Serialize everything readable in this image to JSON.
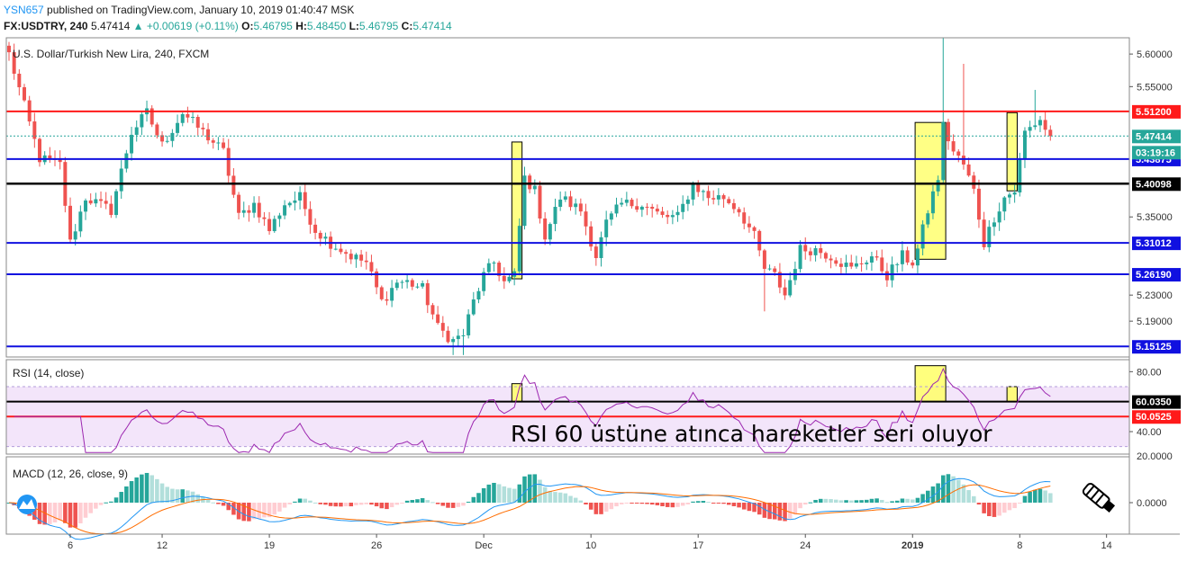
{
  "header": {
    "user": "YSN657",
    "published": "published on TradingView.com, January 10, 2019 01:40:47 MSK",
    "symbol": "FX:USDTRY, 240",
    "last": "5.47414",
    "change": "+0.00619 (+0.11%)",
    "open_label": "O:",
    "open": "5.46795",
    "high_label": "H:",
    "high": "5.48450",
    "low_label": "L:",
    "low": "5.46795",
    "close_label": "C:",
    "close": "5.47414"
  },
  "colors": {
    "up": "#26a69a",
    "down": "#ef5350",
    "red_line": "#ff1a1a",
    "blue_line": "#1010e0",
    "black_line": "#000000",
    "highlight": "#ffff66",
    "rsi": "#9c27b0",
    "macd": "#2196f3",
    "signal": "#ff6d00"
  },
  "chart_data": [
    {
      "type": "candlestick",
      "title": "U.S. Dollar/Turkish New Lira, 240, FXCM",
      "ylim": [
        5.135,
        5.625
      ],
      "y_ticks": [
        5.6,
        5.55,
        5.35,
        5.23,
        5.19
      ],
      "y_tick_labels": [
        "5.60000",
        "5.55000",
        "5.35000",
        "5.23000",
        "5.19000"
      ],
      "x_ticks": [
        {
          "label": "6",
          "idx": 12
        },
        {
          "label": "12",
          "idx": 30
        },
        {
          "label": "19",
          "idx": 51
        },
        {
          "label": "26",
          "idx": 72
        },
        {
          "label": "Dec",
          "idx": 93
        },
        {
          "label": "10",
          "idx": 114
        },
        {
          "label": "17",
          "idx": 135
        },
        {
          "label": "24",
          "idx": 156
        },
        {
          "label": "2019",
          "idx": 177
        },
        {
          "label": "8",
          "idx": 198
        },
        {
          "label": "14",
          "idx": 215
        }
      ],
      "horizontal_levels": [
        {
          "value": 5.512,
          "label": "5.51200",
          "color": "red"
        },
        {
          "value": 5.43875,
          "label": "5.43875",
          "color": "blue"
        },
        {
          "value": 5.40098,
          "label": "5.40098",
          "color": "black"
        },
        {
          "value": 5.31012,
          "label": "5.31012",
          "color": "blue"
        },
        {
          "value": 5.2619,
          "label": "5.26190",
          "color": "blue"
        },
        {
          "value": 5.15125,
          "label": "5.15125",
          "color": "blue"
        }
      ],
      "last_price": {
        "value": 5.47414,
        "label": "5.47414"
      },
      "countdown": "03:19:16",
      "highlight_boxes": [
        {
          "i0": 99,
          "i1": 100,
          "y0": 5.255,
          "y1": 5.465
        },
        {
          "i0": 178,
          "i1": 183,
          "y0": 5.285,
          "y1": 5.495
        },
        {
          "i0": 196,
          "i1": 197,
          "y0": 5.39,
          "y1": 5.51
        }
      ],
      "anchors": [
        [
          0,
          5.6
        ],
        [
          3,
          5.52
        ],
        [
          6,
          5.44
        ],
        [
          10,
          5.43
        ],
        [
          12,
          5.31
        ],
        [
          15,
          5.38
        ],
        [
          20,
          5.36
        ],
        [
          24,
          5.48
        ],
        [
          27,
          5.51
        ],
        [
          30,
          5.46
        ],
        [
          34,
          5.51
        ],
        [
          38,
          5.48
        ],
        [
          42,
          5.45
        ],
        [
          45,
          5.35
        ],
        [
          48,
          5.37
        ],
        [
          51,
          5.33
        ],
        [
          54,
          5.37
        ],
        [
          57,
          5.38
        ],
        [
          60,
          5.33
        ],
        [
          63,
          5.31
        ],
        [
          67,
          5.29
        ],
        [
          70,
          5.28
        ],
        [
          73,
          5.22
        ],
        [
          76,
          5.25
        ],
        [
          78,
          5.25
        ],
        [
          81,
          5.24
        ],
        [
          84,
          5.18
        ],
        [
          87,
          5.16
        ],
        [
          89,
          5.17
        ],
        [
          91,
          5.22
        ],
        [
          93,
          5.26
        ],
        [
          95,
          5.28
        ],
        [
          97,
          5.25
        ],
        [
          99,
          5.26
        ],
        [
          101,
          5.41
        ],
        [
          103,
          5.39
        ],
        [
          105,
          5.32
        ],
        [
          108,
          5.38
        ],
        [
          112,
          5.36
        ],
        [
          115,
          5.29
        ],
        [
          117,
          5.34
        ],
        [
          120,
          5.37
        ],
        [
          124,
          5.37
        ],
        [
          128,
          5.35
        ],
        [
          131,
          5.35
        ],
        [
          134,
          5.4
        ],
        [
          137,
          5.38
        ],
        [
          140,
          5.38
        ],
        [
          143,
          5.36
        ],
        [
          146,
          5.32
        ],
        [
          148,
          5.27
        ],
        [
          150,
          5.26
        ],
        [
          152,
          5.23
        ],
        [
          155,
          5.3
        ],
        [
          158,
          5.3
        ],
        [
          161,
          5.29
        ],
        [
          165,
          5.27
        ],
        [
          169,
          5.29
        ],
        [
          172,
          5.26
        ],
        [
          175,
          5.29
        ],
        [
          177,
          5.28
        ],
        [
          178,
          5.3
        ],
        [
          180,
          5.36
        ],
        [
          182,
          5.41
        ],
        [
          183,
          5.49
        ],
        [
          185,
          5.45
        ],
        [
          187,
          5.43
        ],
        [
          189,
          5.39
        ],
        [
          191,
          5.31
        ],
        [
          193,
          5.35
        ],
        [
          195,
          5.38
        ],
        [
          197,
          5.39
        ],
        [
          199,
          5.48
        ],
        [
          202,
          5.5
        ],
        [
          204,
          5.47
        ]
      ]
    },
    {
      "type": "line",
      "title": "RSI (14, close)",
      "ylim": [
        25,
        88
      ],
      "y_ticks": [
        80,
        40
      ],
      "y_tick_labels": [
        "80.00",
        "40.00"
      ],
      "band": [
        70,
        30
      ],
      "levels": [
        {
          "value": 60.035,
          "label": "60.0350",
          "color": "black"
        },
        {
          "value": 50.0525,
          "label": "50.0525",
          "color": "red"
        }
      ],
      "annotation": "RSI 60 üstüne atınca hareketler seri oluyor",
      "highlight_boxes": [
        {
          "i0": 99,
          "i1": 100,
          "y0": 60,
          "y1": 72
        },
        {
          "i0": 178,
          "i1": 183,
          "y0": 60,
          "y1": 84
        },
        {
          "i0": 196,
          "i1": 197,
          "y0": 60,
          "y1": 70
        }
      ]
    },
    {
      "type": "bar",
      "title": "MACD (12, 26, close, 9)",
      "y_ticks": [
        0
      ],
      "y_tick_labels": [
        "0.0000"
      ],
      "top_tick_label": "20.0000",
      "series": [
        {
          "name": "MACD"
        },
        {
          "name": "Signal"
        },
        {
          "name": "Histogram"
        }
      ]
    }
  ]
}
